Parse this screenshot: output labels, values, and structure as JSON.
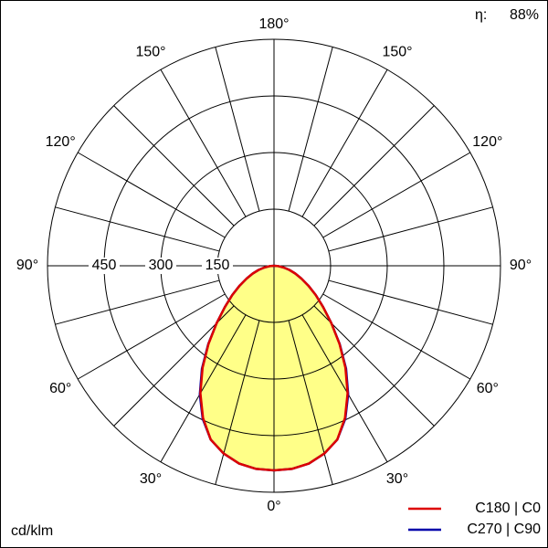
{
  "chart_data": {
    "type": "polar",
    "unit_label": "cd/klm",
    "efficiency_label": "η:",
    "efficiency": "88%",
    "x": [
      0,
      5,
      10,
      15,
      20,
      25,
      30,
      35,
      40,
      45,
      50,
      55,
      60,
      65,
      70,
      75,
      80,
      85,
      90
    ],
    "series": [
      {
        "name": "C270 | C90",
        "color": "#0000aa",
        "values": [
          542,
          540,
          532,
          515,
          490,
          447,
          393,
          333,
          271,
          215,
          170,
          135,
          105,
          80,
          60,
          42,
          26,
          12,
          0
        ]
      },
      {
        "name": "C180 | C0",
        "color": "#dd0000",
        "fill": "#ffff88",
        "values": [
          542,
          540,
          532,
          515,
          490,
          445,
          390,
          330,
          270,
          215,
          170,
          135,
          105,
          80,
          60,
          42,
          26,
          12,
          0
        ]
      }
    ],
    "rlim": [
      0,
      600
    ],
    "rticks": [
      150,
      300,
      450
    ],
    "angle_grid": [
      0,
      15,
      30,
      45,
      60,
      75,
      90,
      105,
      120,
      135,
      150,
      165,
      180
    ],
    "angle_ticks": [
      {
        "value": 0,
        "label": "0°"
      },
      {
        "value": 30,
        "label": "30°"
      },
      {
        "value": 60,
        "label": "60°"
      },
      {
        "value": 90,
        "label": "90°"
      },
      {
        "value": 120,
        "label": "120°"
      },
      {
        "value": 150,
        "label": "150°"
      },
      {
        "value": 180,
        "label": "180°"
      }
    ]
  }
}
